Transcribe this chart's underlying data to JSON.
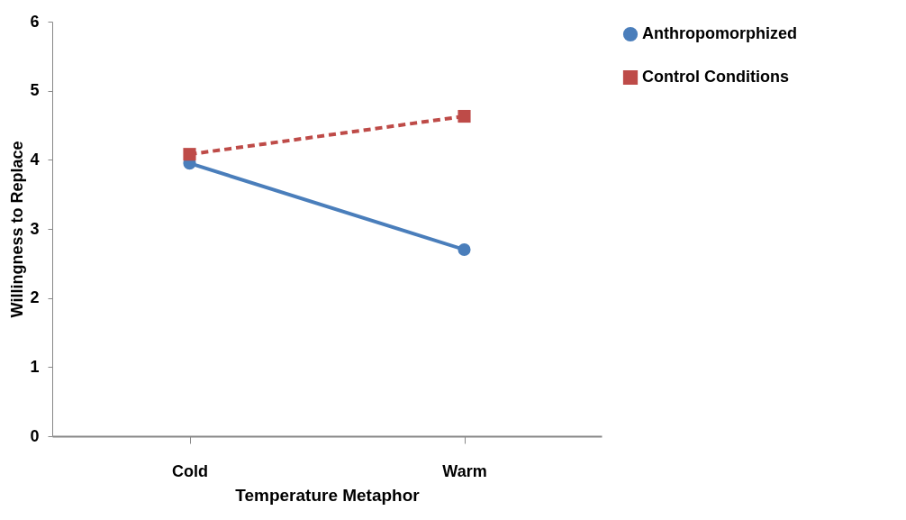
{
  "chart_data": {
    "type": "line",
    "xlabel": "Temperature Metaphor",
    "ylabel": "Willingness to Replace",
    "categories": [
      "Cold",
      "Warm"
    ],
    "series": [
      {
        "name": "Anthropomorphized",
        "color": "#4a7ebb",
        "values": [
          3.95,
          2.7
        ],
        "marker": "circle",
        "line_style": "solid"
      },
      {
        "name": "Control Conditions",
        "color": "#be4b48",
        "values": [
          4.08,
          4.63
        ],
        "marker": "square",
        "line_style": "dashed"
      }
    ],
    "ylim": [
      0,
      6
    ],
    "yticks": [
      0,
      1,
      2,
      3,
      4,
      5,
      6
    ],
    "grid": false,
    "legend": "right"
  }
}
